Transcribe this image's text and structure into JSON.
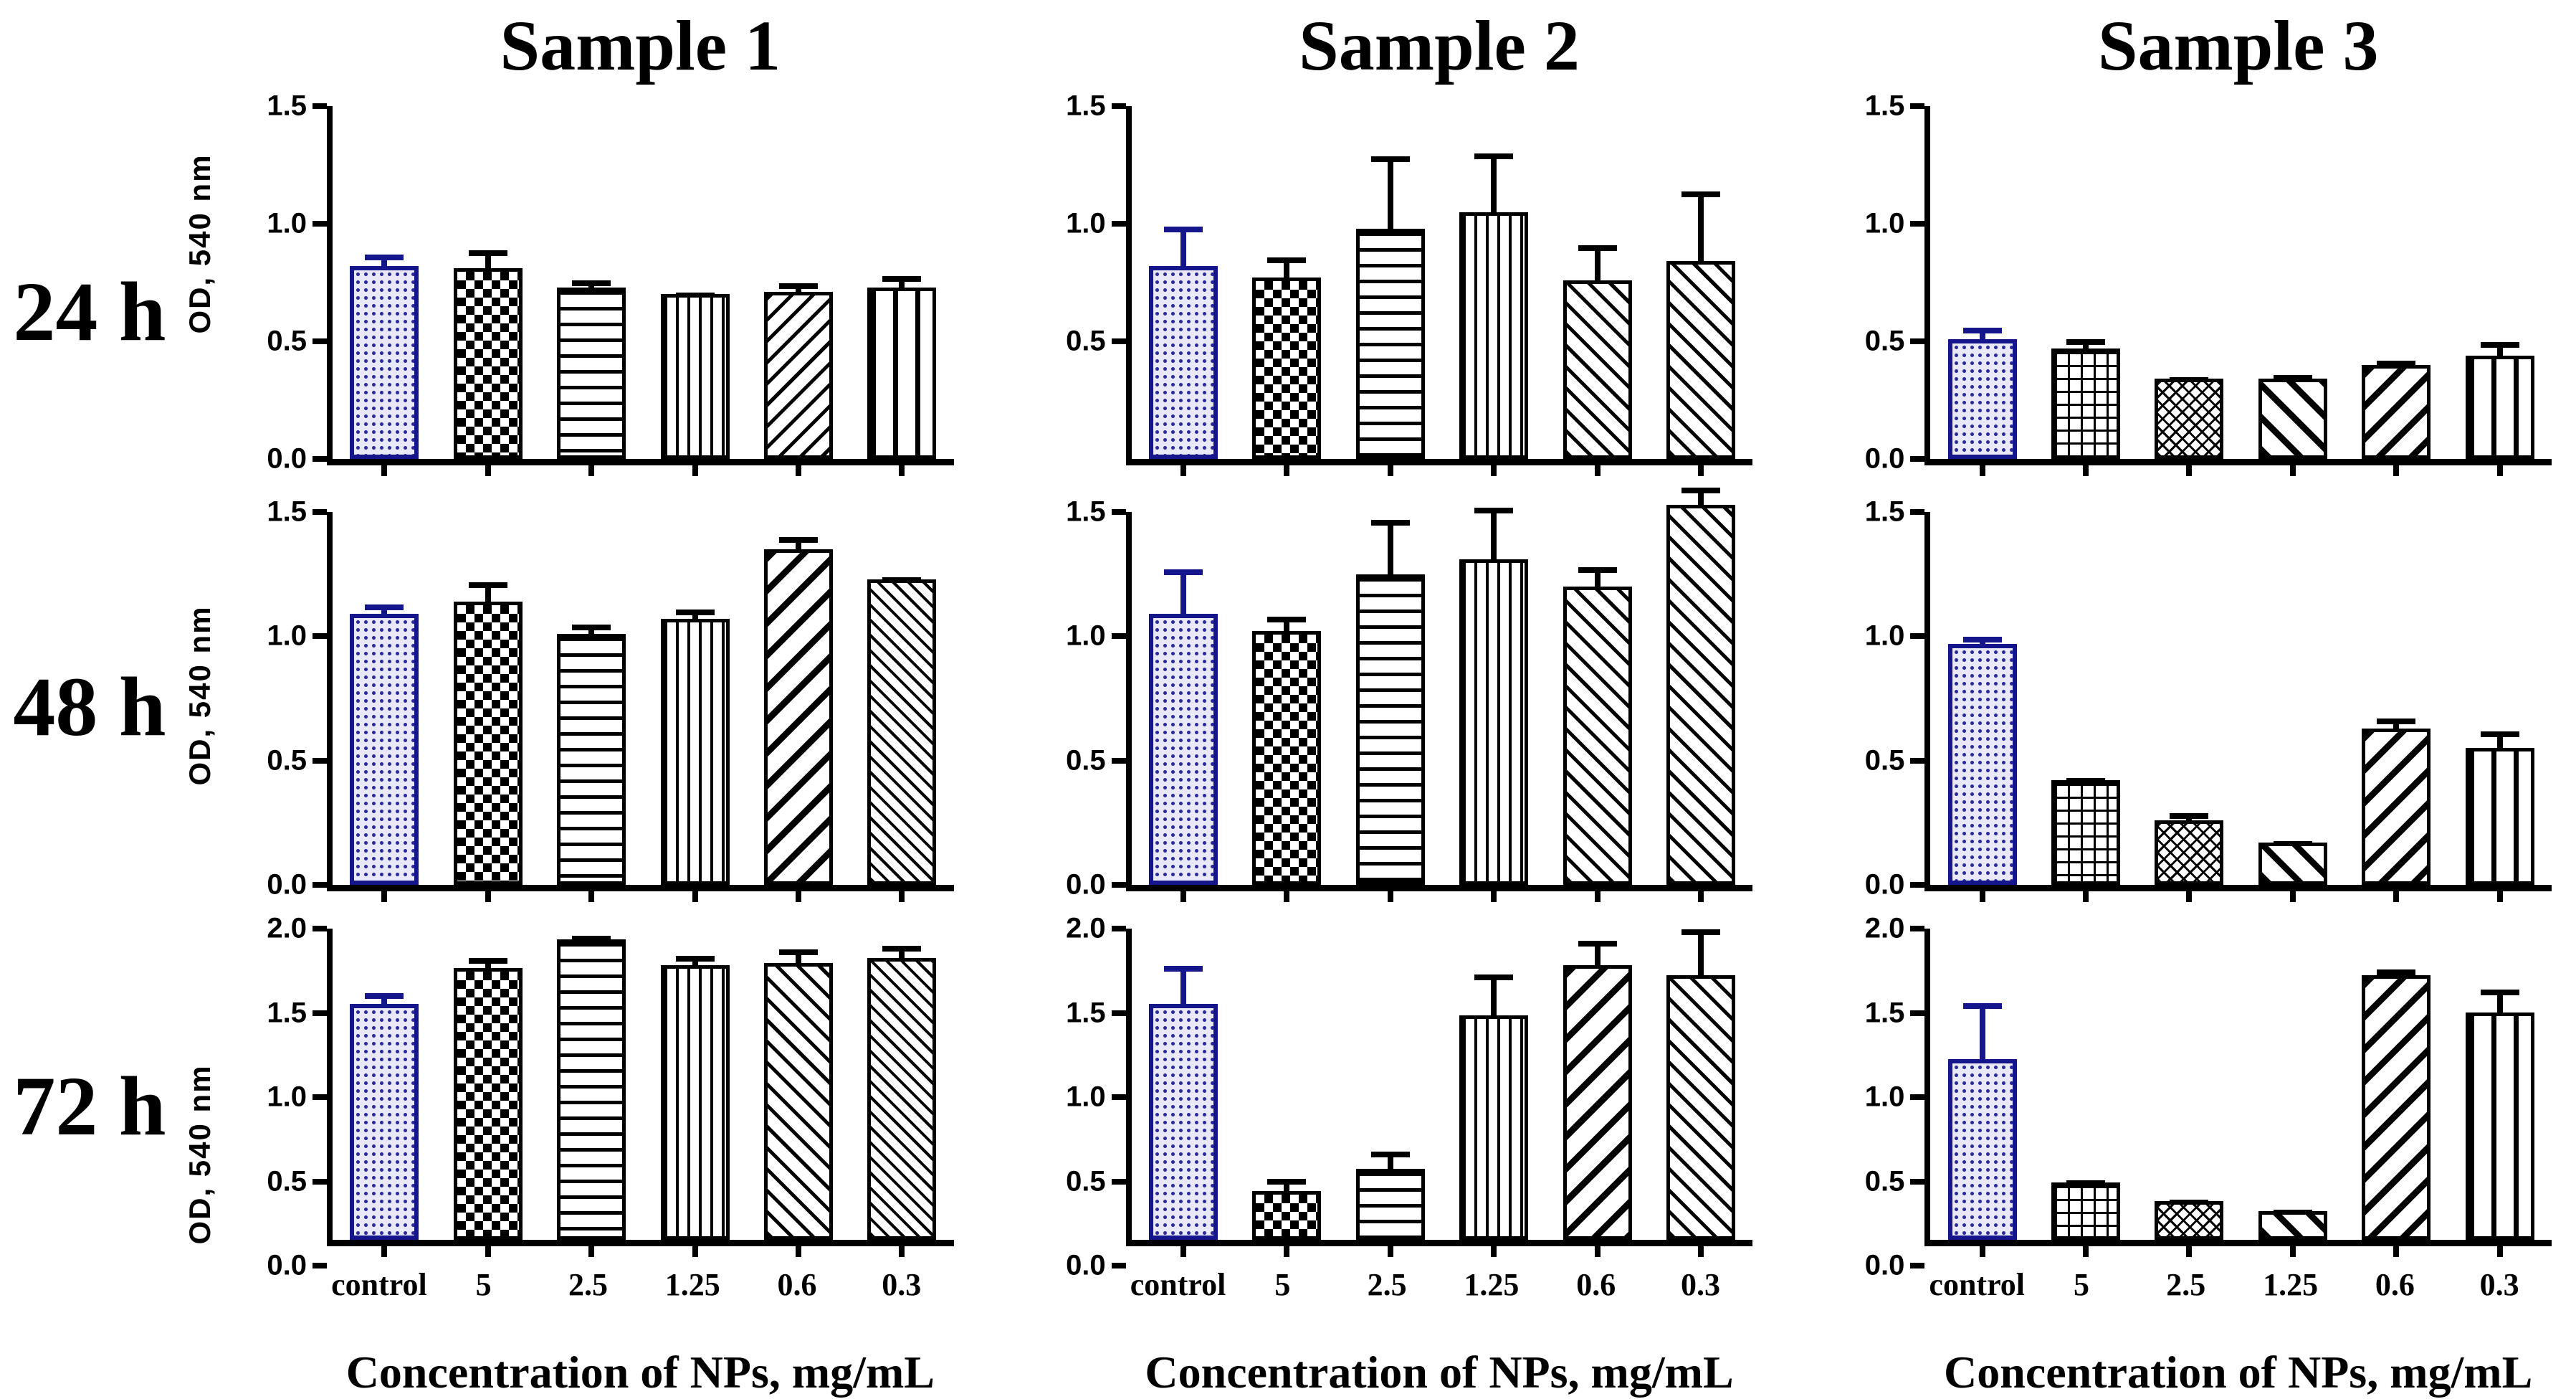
{
  "colors": {
    "control_outline": "#16168c",
    "control_fill": "#e8e8fa",
    "bar_outline": "#000000",
    "error_bar": "#000000",
    "control_error_bar": "#16168c",
    "background": "#ffffff",
    "text": "#000000"
  },
  "chart_data": {
    "type": "bar",
    "categories": [
      "control",
      "5",
      "2.5",
      "1.25",
      "0.6",
      "0.3"
    ],
    "xlabel": "Concentration of NPs, mg/mL",
    "ylabel": "OD, 540 nm",
    "legend": "none",
    "grid": false,
    "column_titles": [
      "Sample 1",
      "Sample 2",
      "Sample 3"
    ],
    "row_labels": [
      "24 h",
      "48 h",
      "72 h"
    ],
    "rows": [
      {
        "time": "24 h",
        "ymax": 1.5,
        "charts": [
          {
            "sample": "Sample 1",
            "show_ylabel": true,
            "yticks": [
              "1.5",
              "1.0",
              "0.5",
              "0.0"
            ],
            "values": [
              0.82,
              0.81,
              0.73,
              0.7,
              0.71,
              0.73
            ],
            "errors": [
              0.06,
              0.09,
              0.04,
              0.02,
              0.05,
              0.06
            ],
            "patterns": [
              "blue-dot-screen",
              "checkerboard",
              "horizontal-lines",
              "vertical-lines-fine",
              "diagonal-up",
              "vertical-lines-wide"
            ]
          },
          {
            "sample": "Sample 2",
            "show_ylabel": false,
            "yticks": [
              "1.5",
              "1.0",
              "0.5"
            ],
            "values": [
              0.82,
              0.77,
              0.98,
              1.05,
              0.76,
              0.84
            ],
            "errors": [
              0.18,
              0.1,
              0.32,
              0.26,
              0.16,
              0.31
            ],
            "patterns": [
              "blue-dot-screen",
              "checkerboard",
              "horizontal-lines",
              "vertical-lines-fine",
              "diagonal-down",
              "diagonal-down"
            ]
          },
          {
            "sample": "Sample 3",
            "show_ylabel": false,
            "yticks": [
              "1.5",
              "1.0",
              "0.5",
              "0.0"
            ],
            "values": [
              0.51,
              0.47,
              0.34,
              0.34,
              0.4,
              0.44
            ],
            "errors": [
              0.06,
              0.05,
              0.01,
              0.03,
              0.03,
              0.07
            ],
            "patterns": [
              "blue-dot-screen",
              "grid-crosshatch",
              "diagonal-crosshatch",
              "diagonal-down-bold",
              "diagonal-up-bold",
              "vertical-lines-wide"
            ]
          }
        ]
      },
      {
        "time": "48 h",
        "ymax": 1.5,
        "charts": [
          {
            "sample": "Sample 1",
            "show_ylabel": true,
            "yticks": [
              "1.5",
              "1.0",
              "0.5",
              "0.0"
            ],
            "values": [
              1.09,
              1.14,
              1.01,
              1.07,
              1.35,
              1.23
            ],
            "errors": [
              0.05,
              0.09,
              0.05,
              0.05,
              0.06,
              0.02
            ],
            "patterns": [
              "blue-dot-screen",
              "checkerboard",
              "horizontal-lines",
              "vertical-lines-fine",
              "diagonal-up-bold",
              "diagonal-down-fine"
            ]
          },
          {
            "sample": "Sample 2",
            "show_ylabel": false,
            "yticks": [
              "1.5",
              "1.0",
              "0.5",
              "0.0"
            ],
            "values": [
              1.09,
              1.02,
              1.25,
              1.31,
              1.2,
              1.53
            ],
            "errors": [
              0.19,
              0.07,
              0.23,
              0.22,
              0.09,
              0.08
            ],
            "patterns": [
              "blue-dot-screen",
              "checkerboard",
              "horizontal-lines",
              "vertical-lines-fine",
              "diagonal-down",
              "diagonal-down"
            ]
          },
          {
            "sample": "Sample 3",
            "show_ylabel": false,
            "yticks": [
              "1.5",
              "1.0",
              "0.5",
              "0.0"
            ],
            "values": [
              0.97,
              0.42,
              0.26,
              0.17,
              0.63,
              0.55
            ],
            "errors": [
              0.04,
              0.02,
              0.04,
              0.01,
              0.05,
              0.08
            ],
            "patterns": [
              "blue-dot-screen",
              "grid-crosshatch",
              "diagonal-crosshatch",
              "diagonal-down-bold",
              "diagonal-up-bold",
              "vertical-lines-wide"
            ]
          }
        ]
      },
      {
        "time": "72 h",
        "ymax": 2.0,
        "charts": [
          {
            "sample": "Sample 1",
            "show_ylabel": true,
            "yticks": [
              "2.0",
              "1.5",
              "1.0",
              "0.5",
              "0.0"
            ],
            "values": [
              1.4,
              1.61,
              1.78,
              1.63,
              1.64,
              1.67
            ],
            "errors": [
              0.08,
              0.08,
              0.04,
              0.07,
              0.1,
              0.09
            ],
            "patterns": [
              "blue-dot-screen",
              "checkerboard",
              "horizontal-lines",
              "vertical-lines-fine",
              "diagonal-down",
              "diagonal-down-fine"
            ]
          },
          {
            "sample": "Sample 2",
            "show_ylabel": false,
            "yticks": [
              "2.0",
              "1.5",
              "1.0",
              "0.5",
              "0.0"
            ],
            "values": [
              1.4,
              0.29,
              0.42,
              1.33,
              1.63,
              1.57
            ],
            "errors": [
              0.24,
              0.09,
              0.12,
              0.26,
              0.16,
              0.29
            ],
            "patterns": [
              "blue-dot-screen",
              "checkerboard",
              "horizontal-lines",
              "vertical-lines-fine",
              "diagonal-up-bold",
              "diagonal-down"
            ]
          },
          {
            "sample": "Sample 3",
            "show_ylabel": false,
            "yticks": [
              "2.0",
              "1.5",
              "1.0",
              "0.5",
              "0.0"
            ],
            "values": [
              1.07,
              0.34,
              0.23,
              0.17,
              1.57,
              1.35
            ],
            "errors": [
              0.35,
              0.03,
              0.01,
              0.01,
              0.05,
              0.15
            ],
            "patterns": [
              "blue-dot-screen",
              "grid-crosshatch",
              "diagonal-crosshatch",
              "diagonal-down-bold",
              "diagonal-up-bold",
              "vertical-lines-wide"
            ]
          }
        ]
      }
    ]
  }
}
